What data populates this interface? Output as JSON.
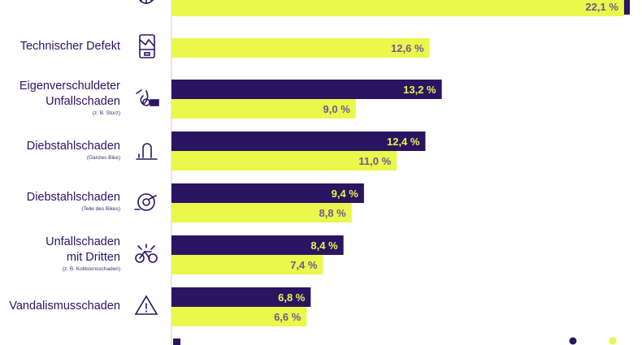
{
  "colors": {
    "series_a": "#2b1461",
    "series_b": "#eaf74b",
    "text": "#2a1565",
    "axis": "#cfcfd6"
  },
  "labels": [
    {
      "lines": [
        "Technischer Defekt"
      ],
      "sub": "",
      "icon": "broken-phone-icon"
    },
    {
      "lines": [
        "Eigenverschuldeter",
        "Unfallschaden"
      ],
      "sub": "(z. B. Sturz)",
      "icon": "bike-crash-icon"
    },
    {
      "lines": [
        "Diebstahlschaden"
      ],
      "sub": "(Ganzes Bike)",
      "icon": "bike-lock-icon"
    },
    {
      "lines": [
        "Diebstahlschaden"
      ],
      "sub": "(Teile des Bikes)",
      "icon": "bike-wheel-icon"
    },
    {
      "lines": [
        "Unfallschaden",
        "mit Dritten"
      ],
      "sub": "(z. B. Kollisionsschaden)",
      "icon": "bike-collision-icon"
    },
    {
      "lines": [
        "Vandalismusschaden"
      ],
      "sub": "",
      "icon": "warning-triangle-icon"
    }
  ],
  "top_icon": "wheel-icon",
  "chart_data": {
    "type": "bar",
    "orientation": "horizontal",
    "categories": [
      "",
      "Technischer Defekt",
      "Eigenverschuldeter Unfallschaden",
      "Diebstahlschaden (Ganzes Bike)",
      "Diebstahlschaden (Teile des Bikes)",
      "Unfallschaden mit Dritten",
      "Vandalismusschaden"
    ],
    "series": [
      {
        "color": "#2b1461",
        "values": [
          null,
          null,
          13.2,
          12.4,
          9.4,
          8.4,
          6.8
        ],
        "labels": [
          "",
          "",
          "13,2 %",
          "12,4 %",
          "9,4 %",
          "8,4 %",
          "6,8 %"
        ]
      },
      {
        "color": "#eaf74b",
        "values": [
          22.1,
          12.6,
          9.0,
          11.0,
          8.8,
          7.4,
          6.6
        ],
        "labels": [
          "22,1 %",
          "12,6 %",
          "9,0 %",
          "11,0 %",
          "8,8 %",
          "7,4 %",
          "6,6 %"
        ]
      }
    ],
    "xlim": [
      0,
      22.8
    ],
    "legend": "bottom-right",
    "grid": false
  }
}
